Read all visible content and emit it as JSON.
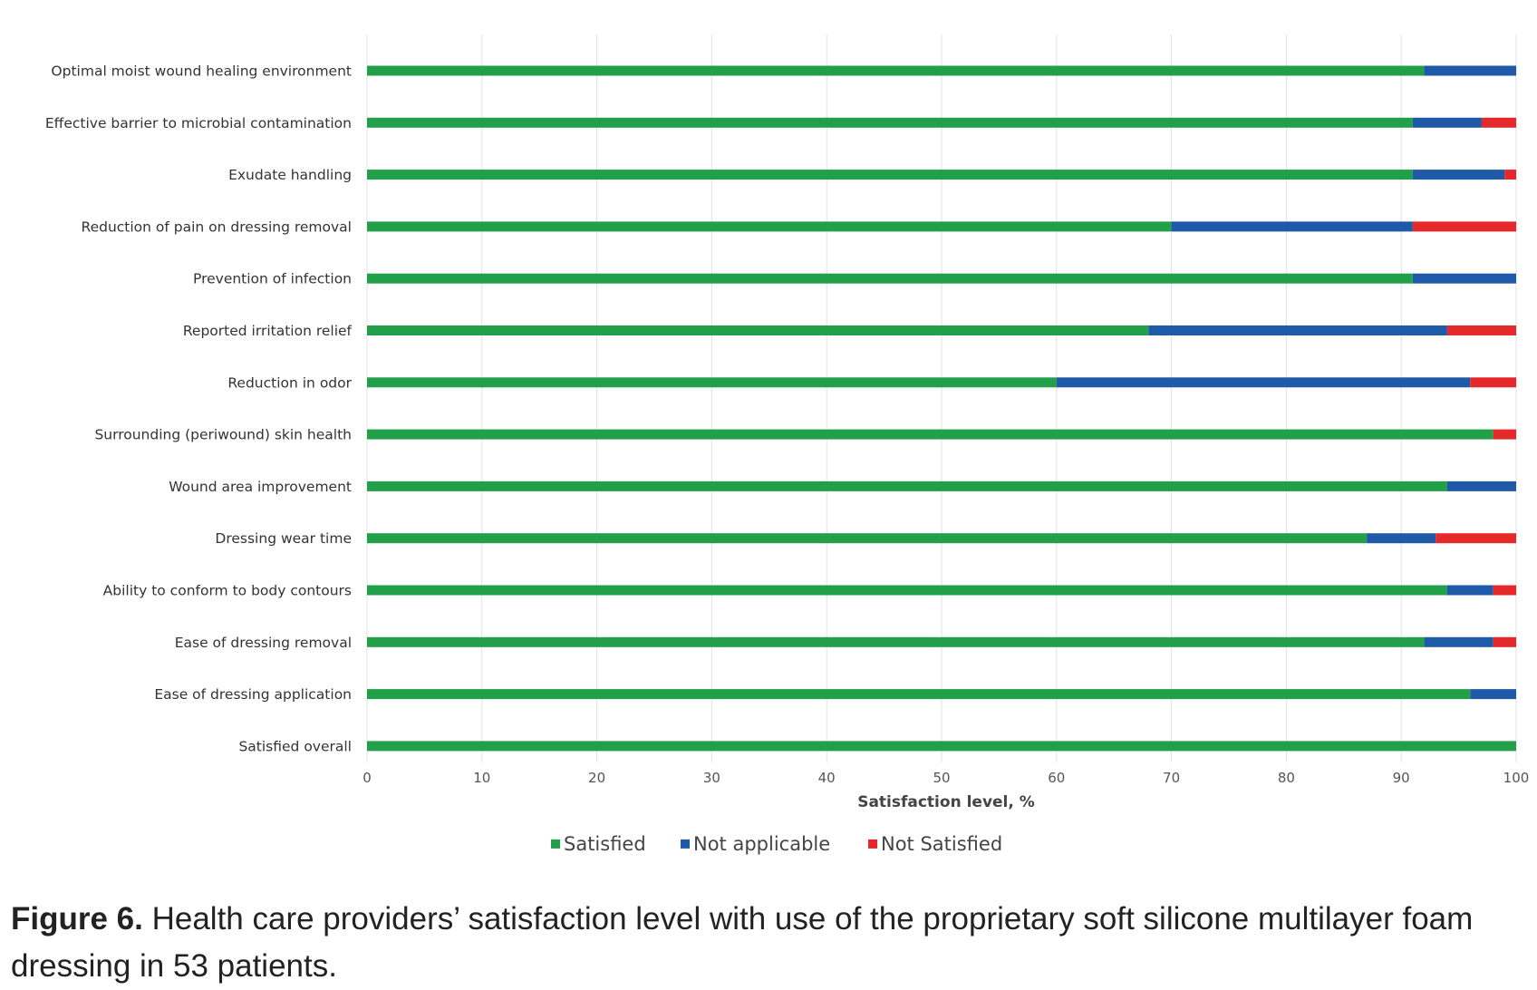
{
  "chart_data": {
    "type": "bar",
    "orientation": "horizontal",
    "stacked": true,
    "categories": [
      "Optimal moist wound healing environment",
      "Effective barrier to microbial contamination",
      "Exudate handling",
      "Reduction of pain on dressing removal",
      "Prevention of infection",
      "Reported irritation relief",
      "Reduction in odor",
      "Surrounding (periwound) skin health",
      "Wound area improvement",
      "Dressing wear time",
      "Ability to conform to body contours",
      "Ease of dressing removal",
      "Ease of dressing application",
      "Satisfied overall"
    ],
    "series": [
      {
        "name": "Satisfied",
        "color": "#22a049",
        "values": [
          92,
          91,
          91,
          70,
          91,
          68,
          60,
          98,
          94,
          87,
          94,
          92,
          96,
          100
        ]
      },
      {
        "name": "Not applicable",
        "color": "#1f5aa8",
        "values": [
          8,
          6,
          8,
          21,
          9,
          26,
          36,
          0,
          6,
          6,
          4,
          6,
          4,
          0
        ]
      },
      {
        "name": "Not Satisfied",
        "color": "#e5282a",
        "values": [
          0,
          3,
          1,
          9,
          0,
          6,
          4,
          2,
          0,
          7,
          2,
          2,
          0,
          0
        ]
      }
    ],
    "xlabel": "Satisfaction level, %",
    "ylabel": "",
    "xlim": [
      0,
      100
    ],
    "xticks": [
      "0",
      "10",
      "20",
      "30",
      "40",
      "50",
      "60",
      "70",
      "80",
      "90",
      "100"
    ],
    "grid": true,
    "legend": "bottom-center"
  },
  "caption": {
    "label": "Figure 6.",
    "text": " Health care providers’ satisfaction level with use of the proprietary soft silicone multilayer foam dressing in 53 patients."
  }
}
